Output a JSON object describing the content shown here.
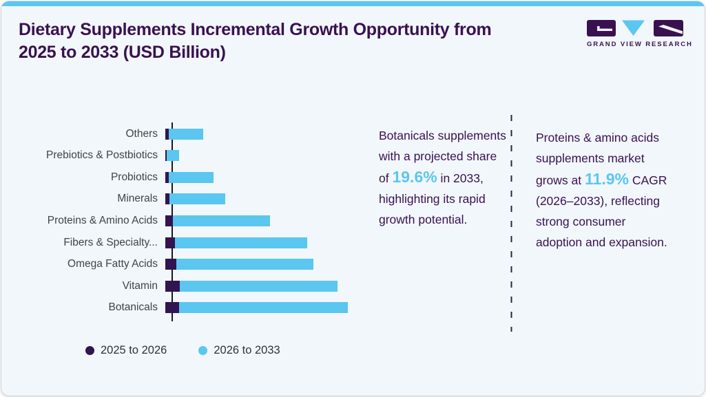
{
  "header": {
    "title": "Dietary Supplements Incremental Growth Opportunity from 2025 to 2033 (USD Billion)",
    "logo": {
      "brand": "GRAND VIEW RESEARCH"
    }
  },
  "chart_data": {
    "type": "bar",
    "orientation": "horizontal",
    "stacked": true,
    "title": "Dietary Supplements Incremental Growth Opportunity from 2025 to 2033 (USD Billion)",
    "xlabel": "",
    "ylabel": "",
    "axis_note": "no numeric axis, ticks or gridlines shown; single vertical baseline at left",
    "value_unit": "relative bar length in px (no scale labeled in image)",
    "legend_position": "bottom-left",
    "categories": [
      "Others",
      "Prebiotics & Postbiotics",
      "Probiotics",
      "Minerals",
      "Proteins & Amino Acids",
      "Fibers & Specialty...",
      "Omega Fatty Acids",
      "Vitamin",
      "Botanicals"
    ],
    "series": [
      {
        "name": "2025 to 2026",
        "color": "#321451",
        "values": [
          5,
          2,
          5,
          6,
          11,
          14,
          16,
          21,
          20
        ]
      },
      {
        "name": "2026 to 2033",
        "color": "#5bc6f0",
        "values": [
          50,
          18,
          65,
          81,
          141,
          192,
          199,
          229,
          245
        ]
      }
    ]
  },
  "callouts": [
    {
      "parts": [
        {
          "text": "Botanicals supplements with a projected share of "
        },
        {
          "text": "19.6%",
          "highlight": true
        },
        {
          "text": " in 2033, highlighting its rapid growth potential."
        }
      ]
    },
    {
      "parts": [
        {
          "text": "Proteins & amino acids supplements market grows at "
        },
        {
          "text": "11.9%",
          "highlight": true
        },
        {
          "text": " CAGR (2026–2033), reflecting strong consumer adoption and expansion."
        }
      ]
    }
  ],
  "colors": {
    "accent_blue": "#5bc6f0",
    "dark_purple": "#321451",
    "title_purple": "#3a1150",
    "card_background": "#f1f7fb",
    "axis": "#16161c",
    "label_gray": "#3f434b"
  }
}
